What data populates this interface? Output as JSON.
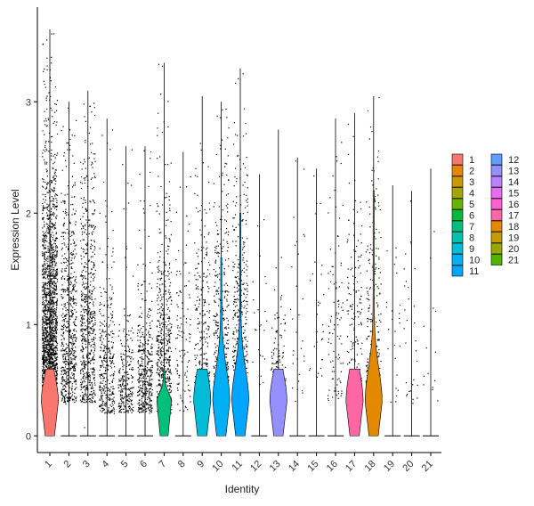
{
  "chart_data": {
    "type": "violin",
    "xlabel": "Identity",
    "ylabel": "Expression Level",
    "ylim": [
      -0.15,
      3.85
    ],
    "yticks": [
      0,
      1,
      2,
      3
    ],
    "categories": [
      "1",
      "2",
      "3",
      "4",
      "5",
      "6",
      "7",
      "8",
      "9",
      "10",
      "11",
      "12",
      "13",
      "14",
      "15",
      "16",
      "17",
      "18",
      "19",
      "20",
      "21"
    ],
    "x_tick_labels": [
      "1",
      "2",
      "3",
      "4",
      "5",
      "6",
      "7",
      "8",
      "9",
      "10",
      "11",
      "12",
      "13",
      "14",
      "15",
      "16",
      "17",
      "18",
      "19",
      "20",
      "21"
    ],
    "colors": [
      "#F8766D",
      "#E58700",
      "#C99800",
      "#A3A500",
      "#6BB100",
      "#00BA38",
      "#00BF7D",
      "#00C0AF",
      "#00BCD8",
      "#00B0F6",
      "#00A5FF",
      "#619CFF",
      "#9590FF",
      "#B983FF",
      "#E76BF3",
      "#FD61D1",
      "#FF67A4",
      "#E38900",
      "#C49A00",
      "#99A800",
      "#53B400"
    ],
    "legend": {
      "position": "right",
      "col1": [
        "1",
        "2",
        "3",
        "4",
        "5",
        "6",
        "7",
        "8",
        "9",
        "10",
        "11"
      ],
      "col2": [
        "12",
        "13",
        "14",
        "15",
        "16",
        "17",
        "18",
        "19",
        "20",
        "21"
      ]
    },
    "series": [
      {
        "name": "1",
        "max": 3.65,
        "nonzero_points": 1800,
        "spread": [
          0.4,
          2.4
        ],
        "violin_peak": 0.25
      },
      {
        "name": "2",
        "max": 3.0,
        "nonzero_points": 650,
        "spread": [
          0.3,
          2.3
        ],
        "violin_peak": 0.0
      },
      {
        "name": "3",
        "max": 3.1,
        "nonzero_points": 650,
        "spread": [
          0.3,
          2.5
        ],
        "violin_peak": 0.0
      },
      {
        "name": "4",
        "max": 2.85,
        "nonzero_points": 350,
        "spread": [
          0.2,
          1.5
        ],
        "violin_peak": 0.0
      },
      {
        "name": "5",
        "max": 2.6,
        "nonzero_points": 250,
        "spread": [
          0.2,
          1.0
        ],
        "violin_peak": 0.0
      },
      {
        "name": "6",
        "max": 2.6,
        "nonzero_points": 420,
        "spread": [
          0.2,
          1.2
        ],
        "violin_peak": 0.0
      },
      {
        "name": "7",
        "max": 3.35,
        "nonzero_points": 550,
        "spread": [
          0.2,
          1.8
        ],
        "violin_peak": 0.12
      },
      {
        "name": "8",
        "max": 2.55,
        "nonzero_points": 110,
        "spread": [
          0.2,
          2.3
        ],
        "violin_peak": 0.0
      },
      {
        "name": "9",
        "max": 3.05,
        "nonzero_points": 260,
        "spread": [
          0.2,
          2.3
        ],
        "violin_peak": 0.35
      },
      {
        "name": "10",
        "max": 3.0,
        "nonzero_points": 380,
        "spread": [
          0.2,
          2.4
        ],
        "violin_peak": 0.4
      },
      {
        "name": "11",
        "max": 3.3,
        "nonzero_points": 420,
        "spread": [
          0.2,
          2.6
        ],
        "violin_peak": 0.4
      },
      {
        "name": "12",
        "max": 2.35,
        "nonzero_points": 25,
        "spread": [
          0.3,
          2.3
        ],
        "violin_peak": 0.0
      },
      {
        "name": "13",
        "max": 2.75,
        "nonzero_points": 160,
        "spread": [
          0.2,
          1.4
        ],
        "violin_peak": 0.3
      },
      {
        "name": "14",
        "max": 2.5,
        "nonzero_points": 30,
        "spread": [
          0.3,
          2.3
        ],
        "violin_peak": 0.0
      },
      {
        "name": "15",
        "max": 2.4,
        "nonzero_points": 30,
        "spread": [
          0.3,
          2.3
        ],
        "violin_peak": 0.0
      },
      {
        "name": "16",
        "max": 2.85,
        "nonzero_points": 100,
        "spread": [
          0.3,
          2.5
        ],
        "violin_peak": 0.0
      },
      {
        "name": "17",
        "max": 2.9,
        "nonzero_points": 170,
        "spread": [
          0.2,
          2.3
        ],
        "violin_peak": 0.35
      },
      {
        "name": "18",
        "max": 3.05,
        "nonzero_points": 250,
        "spread": [
          0.2,
          2.3
        ],
        "violin_peak": 0.4
      },
      {
        "name": "19",
        "max": 2.25,
        "nonzero_points": 25,
        "spread": [
          0.3,
          2.1
        ],
        "violin_peak": 0.0
      },
      {
        "name": "20",
        "max": 2.2,
        "nonzero_points": 30,
        "spread": [
          0.3,
          2.1
        ],
        "violin_peak": 0.0
      },
      {
        "name": "21",
        "max": 2.4,
        "nonzero_points": 15,
        "spread": [
          0.2,
          2.3
        ],
        "violin_peak": 0.0
      }
    ]
  }
}
